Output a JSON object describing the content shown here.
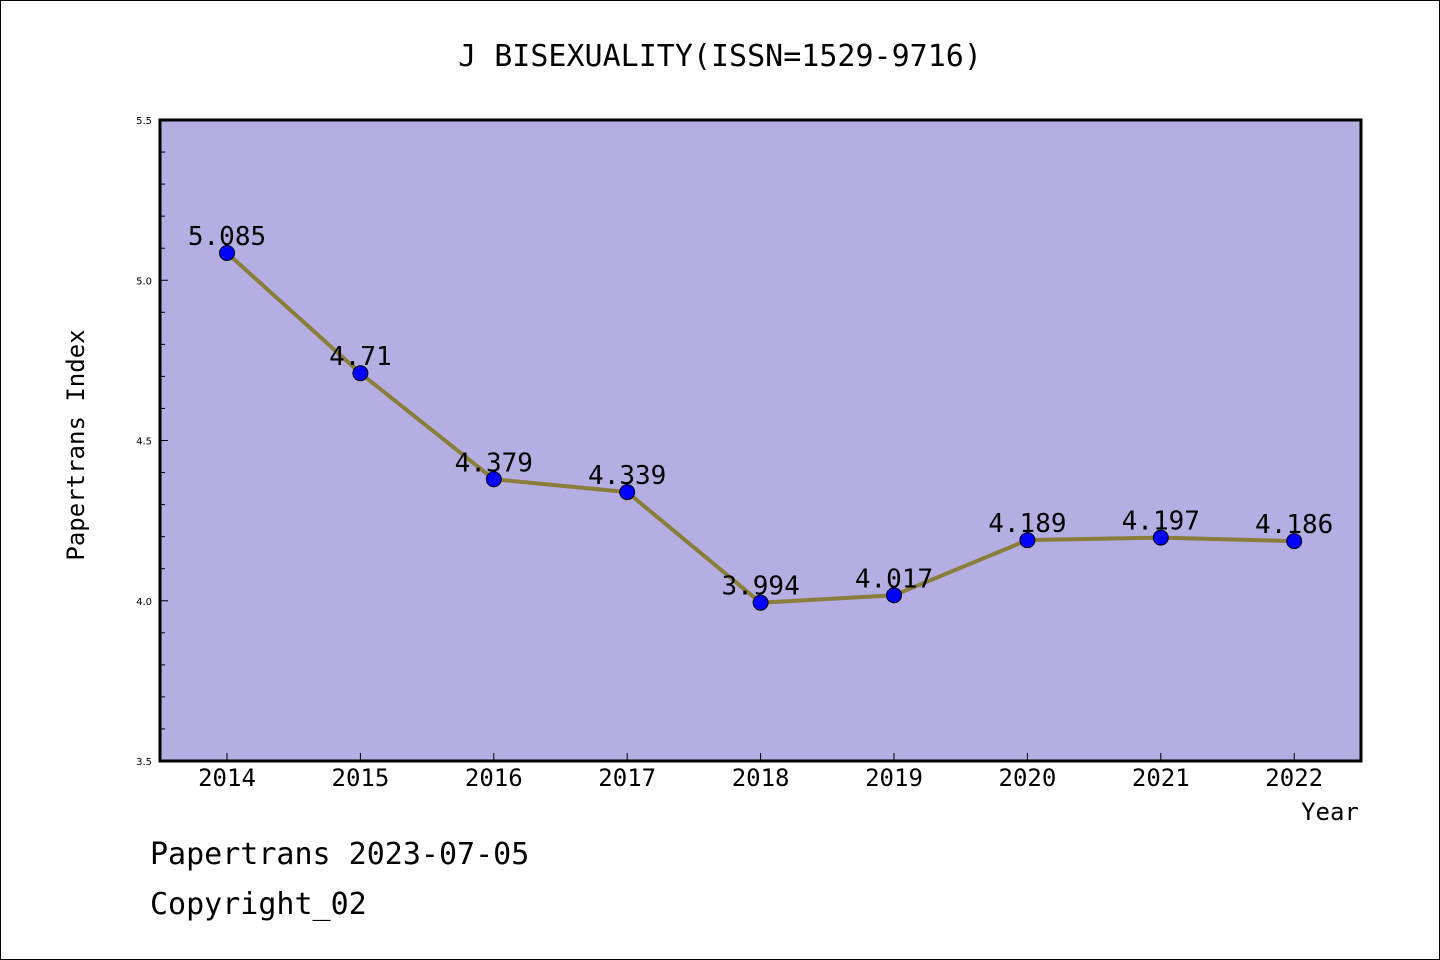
{
  "chart_data": {
    "type": "line",
    "title": "J BISEXUALITY(ISSN=1529-9716)",
    "xlabel": "Year",
    "ylabel": "Papertrans Index",
    "categories": [
      "2014",
      "2015",
      "2016",
      "2017",
      "2018",
      "2019",
      "2020",
      "2021",
      "2022"
    ],
    "values": [
      5.085,
      4.71,
      4.379,
      4.339,
      3.994,
      4.017,
      4.189,
      4.197,
      4.186
    ],
    "data_labels": [
      "5.085",
      "4.71",
      "4.379",
      "4.339",
      "3.994",
      "4.017",
      "4.189",
      "4.197",
      "4.186"
    ],
    "ylim": [
      3.5,
      5.5
    ],
    "yticks": [
      "3.5",
      "4.0",
      "4.5",
      "5.0",
      "5.5"
    ],
    "grid": false,
    "colors": {
      "plot_bg": "#b5aee2",
      "line": "#8b7d3a",
      "marker": "#0000ff"
    }
  },
  "footer": {
    "date_text": "Papertrans 2023-07-05",
    "copyright": "Copyright_02"
  }
}
